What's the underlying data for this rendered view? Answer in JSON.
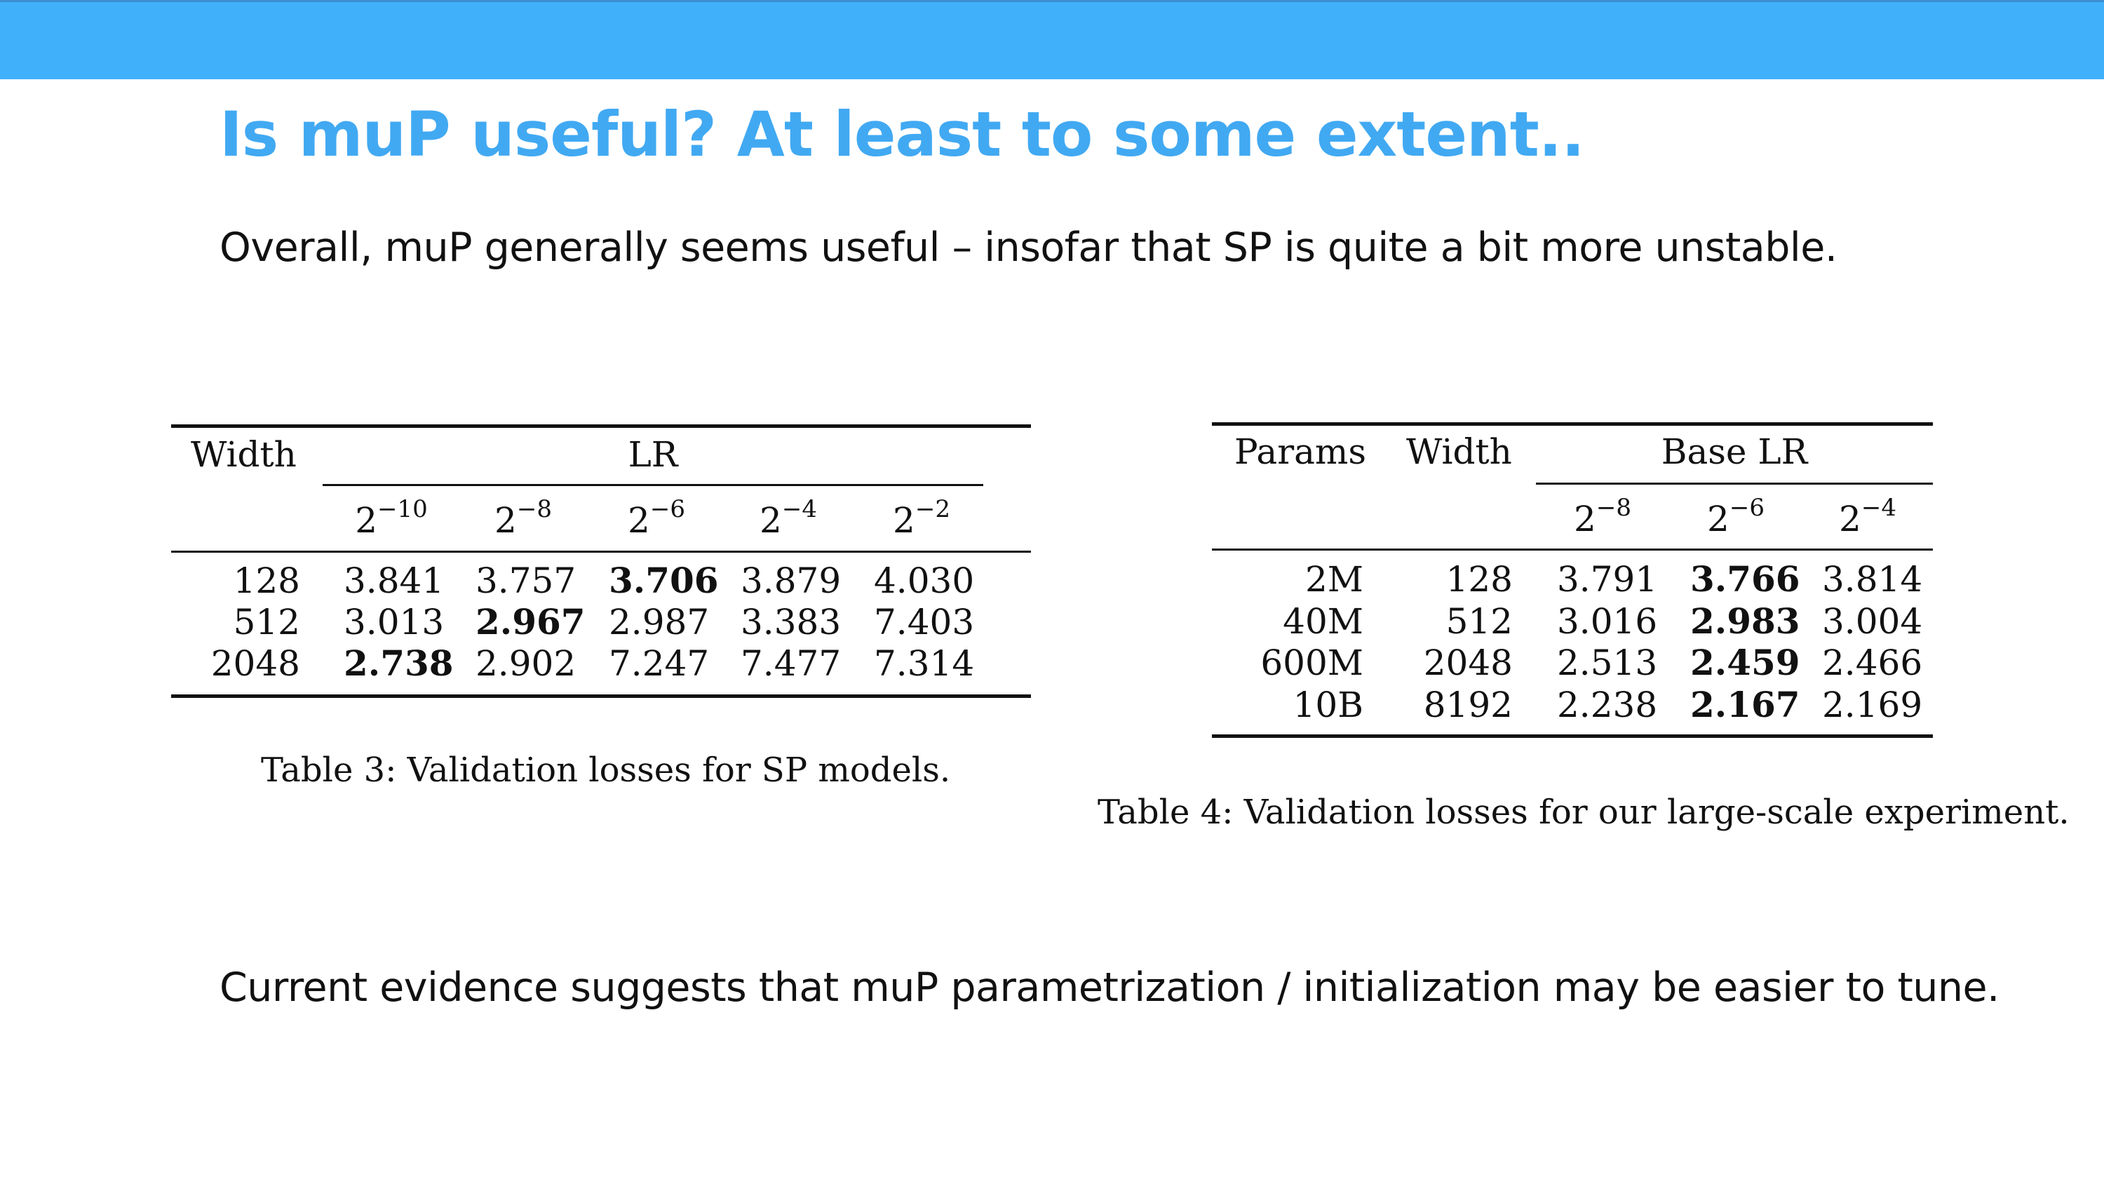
{
  "slide": {
    "title": "Is muP useful? At least to some extent..",
    "intro": "Overall, muP generally seems useful – insofar that SP is quite a bit more unstable.",
    "conclusion": "Current evidence suggests that muP parametrization / initialization may be easier to tune."
  },
  "table3": {
    "header_width": "Width",
    "header_lr": "LR",
    "lr_base": "2",
    "lr_exponents": [
      "−10",
      "−8",
      "−6",
      "−4",
      "−2"
    ],
    "rows": [
      {
        "width": "128",
        "values": [
          "3.841",
          "3.757",
          "3.706",
          "3.879",
          "4.030"
        ],
        "best": 2
      },
      {
        "width": "512",
        "values": [
          "3.013",
          "2.967",
          "2.987",
          "3.383",
          "7.403"
        ],
        "best": 1
      },
      {
        "width": "2048",
        "values": [
          "2.738",
          "2.902",
          "7.247",
          "7.477",
          "7.314"
        ],
        "best": 0
      }
    ],
    "caption": "Table 3: Validation losses for SP models."
  },
  "table4": {
    "header_params": "Params",
    "header_width": "Width",
    "header_lr": "Base LR",
    "lr_base": "2",
    "lr_exponents": [
      "−8",
      "−6",
      "−4"
    ],
    "rows": [
      {
        "params": "2M",
        "width": "128",
        "values": [
          "3.791",
          "3.766",
          "3.814"
        ],
        "best": 1
      },
      {
        "params": "40M",
        "width": "512",
        "values": [
          "3.016",
          "2.983",
          "3.004"
        ],
        "best": 1
      },
      {
        "params": "600M",
        "width": "2048",
        "values": [
          "2.513",
          "2.459",
          "2.466"
        ],
        "best": 1
      },
      {
        "params": "10B",
        "width": "8192",
        "values": [
          "2.238",
          "2.167",
          "2.169"
        ],
        "best": 1
      }
    ],
    "caption": "Table 4: Validation losses for our large-scale experiment."
  }
}
